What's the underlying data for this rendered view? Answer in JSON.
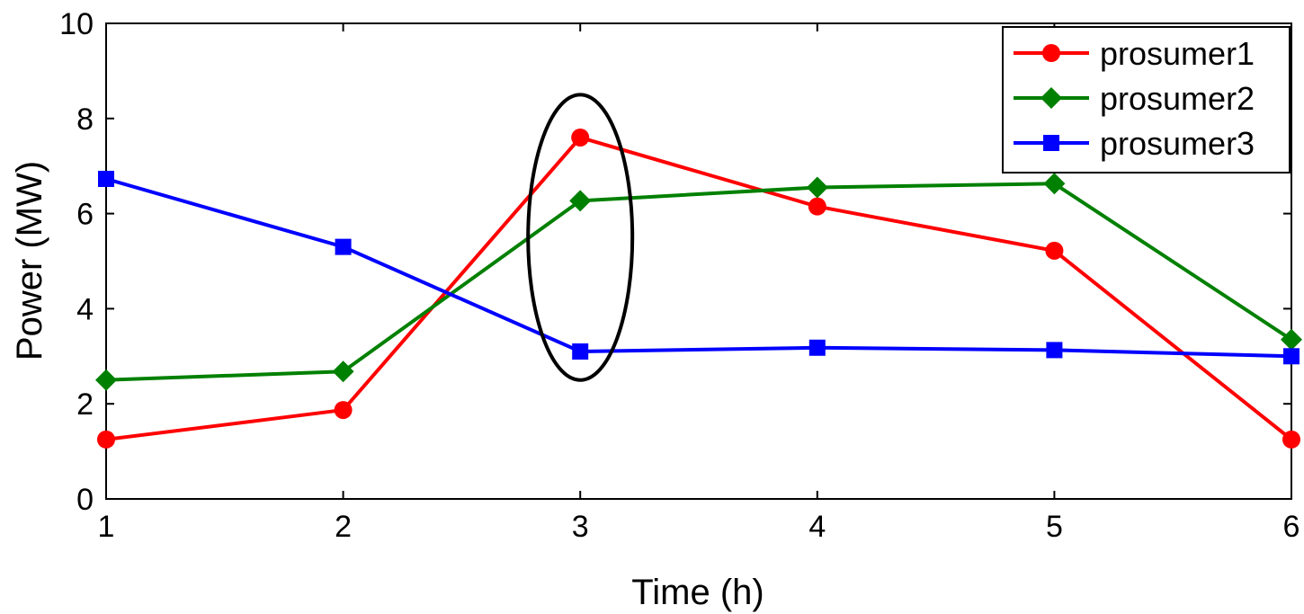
{
  "chart_data": {
    "type": "line",
    "title": "",
    "xlabel": "Time (h)",
    "ylabel": "Power (MW)",
    "x": [
      1,
      2,
      3,
      4,
      5,
      6
    ],
    "xticks": [
      1,
      2,
      3,
      4,
      5,
      6
    ],
    "yticks": [
      0,
      2,
      4,
      6,
      8,
      10
    ],
    "xlim": [
      1,
      6
    ],
    "ylim": [
      0,
      10
    ],
    "grid": false,
    "legend_position": "top-right",
    "series": [
      {
        "name": "prosumer1",
        "color": "#ff0000",
        "marker": "circle",
        "values": [
          1.25,
          1.87,
          7.6,
          6.15,
          5.22,
          1.25
        ]
      },
      {
        "name": "prosumer2",
        "color": "#008000",
        "marker": "diamond",
        "values": [
          2.5,
          2.68,
          6.27,
          6.55,
          6.63,
          3.35
        ]
      },
      {
        "name": "prosumer3",
        "color": "#0000ff",
        "marker": "square",
        "values": [
          6.73,
          5.3,
          3.1,
          3.18,
          3.13,
          3.0
        ]
      }
    ],
    "annotations": [
      {
        "type": "ellipse",
        "color": "#000000",
        "x_center": 3.0,
        "y_center": 5.5,
        "x_halfwidth": 0.22,
        "y_halfheight": 3.0
      }
    ]
  }
}
